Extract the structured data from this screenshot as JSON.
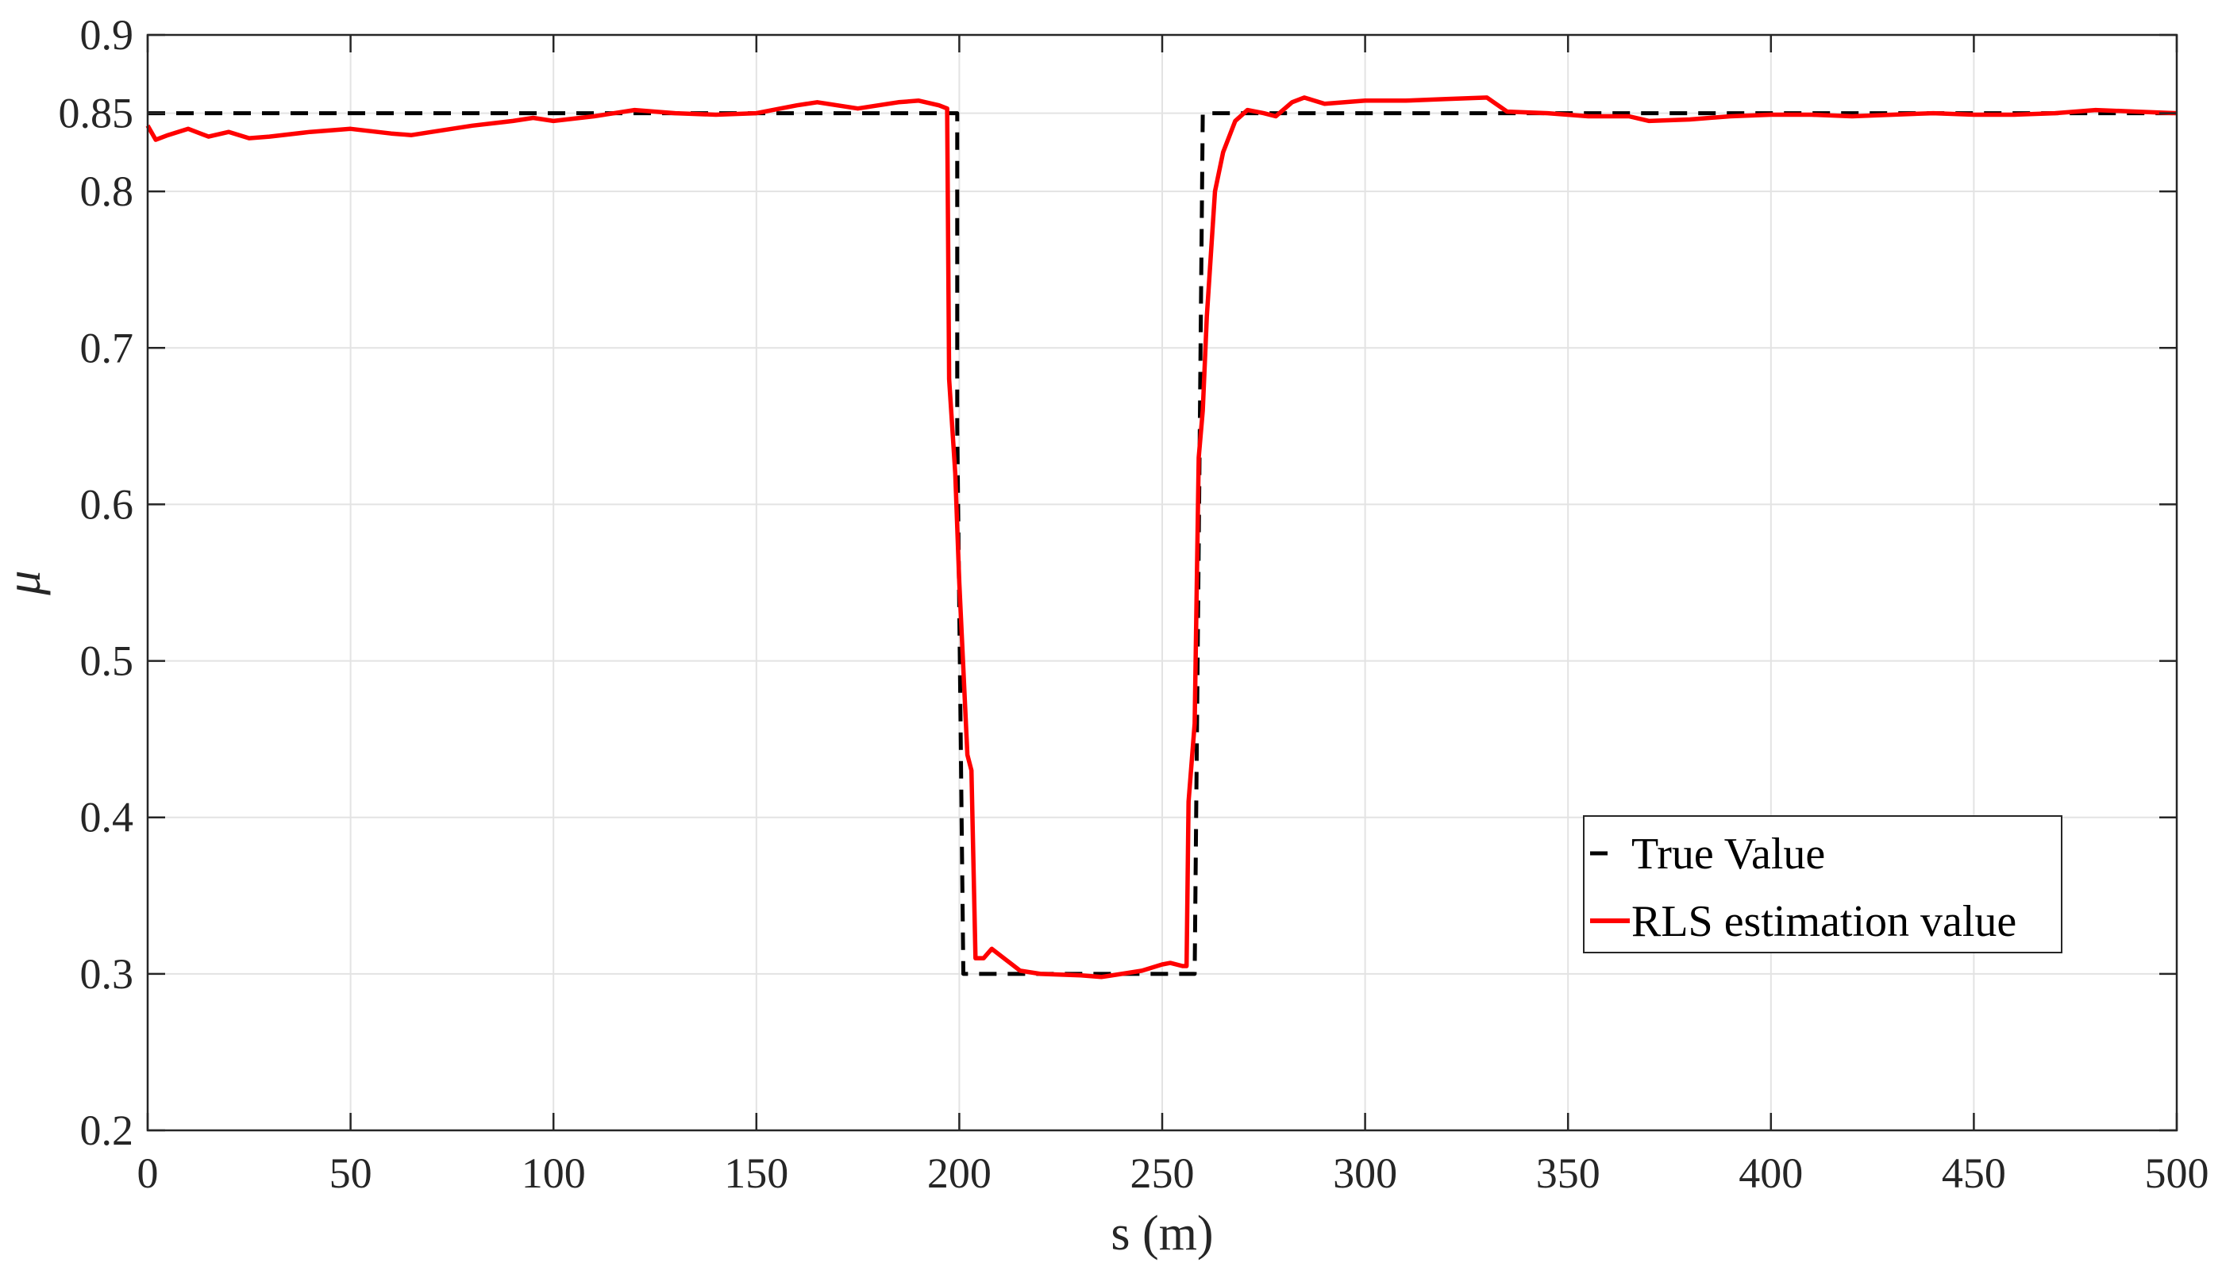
{
  "chart_data": {
    "type": "line",
    "title": "",
    "xlabel": "s (m)",
    "ylabel": "μ",
    "xlim": [
      0,
      500
    ],
    "ylim": [
      0.2,
      0.9
    ],
    "xticks": [
      "0",
      "50",
      "100",
      "150",
      "200",
      "250",
      "300",
      "350",
      "400",
      "450",
      "500"
    ],
    "yticks": [
      "0.2",
      "0.3",
      "0.4",
      "0.5",
      "0.6",
      "0.7",
      "0.8",
      "0.85",
      "0.9"
    ],
    "grid": true,
    "legend_position": "lower-right",
    "series": [
      {
        "name": "True Value",
        "color": "#000000",
        "style": "dashed",
        "points": [
          [
            0,
            0.85
          ],
          [
            199.5,
            0.85
          ],
          [
            199.5,
            0.65
          ],
          [
            201,
            0.3
          ],
          [
            258,
            0.3
          ],
          [
            260,
            0.85
          ],
          [
            500,
            0.85
          ]
        ]
      },
      {
        "name": "RLS estimation value",
        "color": "#ff0000",
        "style": "solid",
        "points": [
          [
            0,
            0.842
          ],
          [
            2,
            0.833
          ],
          [
            5,
            0.836
          ],
          [
            10,
            0.84
          ],
          [
            15,
            0.835
          ],
          [
            20,
            0.838
          ],
          [
            25,
            0.834
          ],
          [
            30,
            0.835
          ],
          [
            40,
            0.838
          ],
          [
            50,
            0.84
          ],
          [
            60,
            0.837
          ],
          [
            65,
            0.836
          ],
          [
            70,
            0.838
          ],
          [
            80,
            0.842
          ],
          [
            90,
            0.845
          ],
          [
            95,
            0.847
          ],
          [
            100,
            0.845
          ],
          [
            110,
            0.848
          ],
          [
            120,
            0.852
          ],
          [
            130,
            0.85
          ],
          [
            140,
            0.849
          ],
          [
            150,
            0.85
          ],
          [
            160,
            0.855
          ],
          [
            165,
            0.857
          ],
          [
            175,
            0.853
          ],
          [
            185,
            0.857
          ],
          [
            190,
            0.858
          ],
          [
            195,
            0.855
          ],
          [
            197,
            0.853
          ],
          [
            197.5,
            0.68
          ],
          [
            199,
            0.62
          ],
          [
            200,
            0.55
          ],
          [
            202,
            0.44
          ],
          [
            203,
            0.43
          ],
          [
            204,
            0.31
          ],
          [
            206,
            0.31
          ],
          [
            208,
            0.316
          ],
          [
            212,
            0.308
          ],
          [
            215,
            0.302
          ],
          [
            220,
            0.3
          ],
          [
            230,
            0.299
          ],
          [
            235,
            0.298
          ],
          [
            240,
            0.3
          ],
          [
            245,
            0.302
          ],
          [
            250,
            0.306
          ],
          [
            252,
            0.307
          ],
          [
            255,
            0.305
          ],
          [
            256,
            0.305
          ],
          [
            256.5,
            0.41
          ],
          [
            258,
            0.46
          ],
          [
            259,
            0.63
          ],
          [
            260,
            0.66
          ],
          [
            261,
            0.72
          ],
          [
            263,
            0.8
          ],
          [
            265,
            0.825
          ],
          [
            268,
            0.845
          ],
          [
            271,
            0.852
          ],
          [
            275,
            0.85
          ],
          [
            278,
            0.848
          ],
          [
            282,
            0.857
          ],
          [
            285,
            0.86
          ],
          [
            290,
            0.856
          ],
          [
            300,
            0.858
          ],
          [
            310,
            0.858
          ],
          [
            320,
            0.859
          ],
          [
            330,
            0.86
          ],
          [
            335,
            0.851
          ],
          [
            345,
            0.85
          ],
          [
            355,
            0.848
          ],
          [
            365,
            0.848
          ],
          [
            370,
            0.845
          ],
          [
            380,
            0.846
          ],
          [
            390,
            0.848
          ],
          [
            400,
            0.849
          ],
          [
            410,
            0.849
          ],
          [
            420,
            0.848
          ],
          [
            430,
            0.849
          ],
          [
            440,
            0.85
          ],
          [
            450,
            0.849
          ],
          [
            460,
            0.849
          ],
          [
            470,
            0.85
          ],
          [
            480,
            0.852
          ],
          [
            490,
            0.851
          ],
          [
            500,
            0.85
          ]
        ]
      }
    ]
  }
}
